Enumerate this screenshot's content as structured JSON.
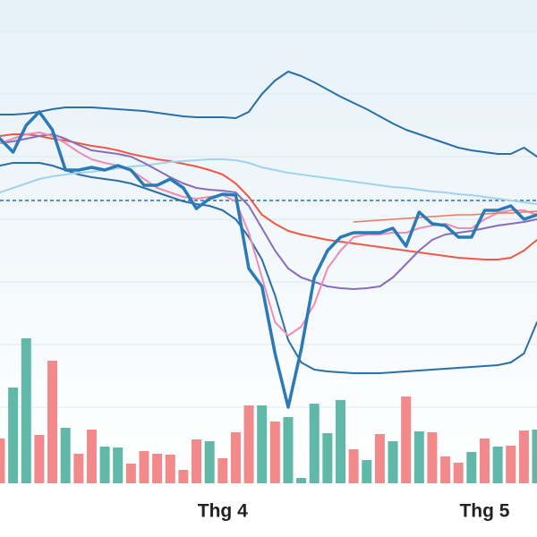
{
  "chart_data": {
    "type": "stock",
    "categories": [
      null,
      null,
      null,
      null,
      null,
      null,
      null,
      null,
      null,
      null,
      null,
      null,
      null,
      null,
      null,
      null,
      null,
      "Thg 4",
      null,
      null,
      null,
      null,
      null,
      null,
      null,
      null,
      null,
      null,
      null,
      null,
      null,
      null,
      null,
      null,
      null,
      null,
      null,
      "Thg 5",
      null,
      null,
      null,
      null
    ],
    "ylim": [
      0,
      540
    ],
    "y2lim": [
      0,
      200
    ],
    "reference_line": {
      "value": 316,
      "color": "#2a6fa8"
    },
    "series": [
      {
        "name": "price",
        "color": "#2a7ab8",
        "width": 3.5,
        "values": [
          385,
          370,
          400,
          415,
          395,
          350,
          350,
          353,
          350,
          355,
          350,
          333,
          333,
          340,
          330,
          307,
          318,
          323,
          322,
          240,
          220,
          145,
          85,
          150,
          230,
          260,
          275,
          280,
          280,
          280,
          285,
          265,
          303,
          290,
          288,
          275,
          275,
          305,
          305,
          310,
          295,
          300
        ]
      },
      {
        "name": "upper-band",
        "color": "#2a6fa8",
        "width": 2,
        "values": [
          412,
          412,
          413,
          415,
          418,
          420,
          420,
          420,
          419,
          418,
          417,
          416,
          414,
          412,
          410,
          409,
          409,
          409,
          408,
          415,
          435,
          450,
          460,
          455,
          448,
          440,
          432,
          425,
          418,
          410,
          402,
          395,
          390,
          385,
          380,
          375,
          372,
          370,
          368,
          368,
          375,
          365
        ]
      },
      {
        "name": "lower-band",
        "color": "#2a6fa8",
        "width": 2,
        "values": [
          355,
          358,
          358,
          358,
          355,
          350,
          345,
          342,
          340,
          338,
          335,
          330,
          325,
          320,
          315,
          312,
          310,
          305,
          295,
          275,
          250,
          210,
          160,
          135,
          127,
          125,
          124,
          123,
          123,
          123,
          124,
          125,
          126,
          127,
          128,
          129,
          130,
          131,
          132,
          135,
          145,
          180
        ]
      },
      {
        "name": "ma-long",
        "color": "#ee5a45",
        "width": 2,
        "values": [
          388,
          390,
          390,
          388,
          385,
          383,
          380,
          377,
          375,
          372,
          368,
          365,
          362,
          360,
          357,
          354,
          350,
          345,
          335,
          320,
          300,
          290,
          282,
          278,
          275,
          272,
          270,
          268,
          266,
          264,
          262,
          260,
          258,
          256,
          254,
          252,
          251,
          250,
          250,
          252,
          260,
          272
        ]
      },
      {
        "name": "ma-slow",
        "color": "#9fd3ee",
        "width": 2,
        "values": [
          325,
          330,
          335,
          340,
          343,
          345,
          347,
          348,
          350,
          352,
          354,
          355,
          357,
          359,
          360,
          361,
          362,
          362,
          361,
          358,
          353,
          350,
          347,
          345,
          343,
          341,
          339,
          337,
          335,
          333,
          331,
          330,
          328,
          326,
          325,
          323,
          322,
          320,
          318,
          316,
          314,
          312
        ]
      },
      {
        "name": "ma-mid",
        "color": "#8a6cba",
        "width": 2,
        "values": [
          380,
          382,
          385,
          388,
          390,
          385,
          378,
          372,
          370,
          368,
          365,
          358,
          350,
          342,
          335,
          330,
          328,
          327,
          325,
          310,
          285,
          260,
          240,
          230,
          225,
          220,
          218,
          217,
          218,
          220,
          230,
          245,
          260,
          272,
          278,
          280,
          282,
          285,
          288,
          290,
          292,
          295
        ]
      },
      {
        "name": "ma-short",
        "color": "#ef8cb6",
        "width": 2,
        "values": [
          380,
          385,
          390,
          392,
          388,
          380,
          370,
          362,
          358,
          355,
          350,
          340,
          330,
          325,
          320,
          318,
          320,
          322,
          315,
          280,
          230,
          180,
          165,
          175,
          200,
          240,
          260,
          275,
          278,
          278,
          280,
          280,
          285,
          288,
          290,
          285,
          285,
          295,
          302,
          305,
          305,
          300
        ]
      },
      {
        "name": "trend",
        "color": "#ee7a55",
        "width": 1.5,
        "values": [
          null,
          null,
          null,
          null,
          null,
          null,
          null,
          null,
          null,
          null,
          null,
          null,
          null,
          null,
          null,
          null,
          null,
          null,
          null,
          null,
          null,
          null,
          null,
          null,
          null,
          null,
          null,
          292,
          293,
          294,
          295,
          296,
          297,
          298,
          299,
          300,
          300,
          301,
          302,
          302,
          303,
          304
        ]
      }
    ],
    "volume": {
      "values": [
        50,
        107,
        162,
        54,
        137,
        62,
        33,
        60,
        41,
        40,
        22,
        36,
        33,
        32,
        15,
        49,
        47,
        28,
        57,
        87,
        87,
        69,
        74,
        6,
        89,
        56,
        93,
        38,
        26,
        55,
        47,
        97,
        58,
        57,
        30,
        23,
        35,
        50,
        41,
        42,
        59,
        60
      ],
      "colors": [
        "#f2898b",
        "#5fb8a8",
        "#5fb8a8",
        "#f2898b",
        "#f2898b",
        "#5fb8a8",
        "#f2898b",
        "#f2898b",
        "#5fb8a8",
        "#5fb8a8",
        "#f2898b",
        "#f2898b",
        "#f2898b",
        "#f2898b",
        "#f2898b",
        "#f2898b",
        "#5fb8a8",
        "#f2898b",
        "#f2898b",
        "#f2898b",
        "#5fb8a8",
        "#f2898b",
        "#5fb8a8",
        "#5fb8a8",
        "#5fb8a8",
        "#5fb8a8",
        "#5fb8a8",
        "#f2898b",
        "#5fb8a8",
        "#f2898b",
        "#5fb8a8",
        "#f2898b",
        "#5fb8a8",
        "#f2898b",
        "#f2898b",
        "#f2898b",
        "#5fb8a8",
        "#f2898b",
        "#5fb8a8",
        "#f2898b",
        "#f2898b",
        "#5fb8a8"
      ]
    }
  }
}
